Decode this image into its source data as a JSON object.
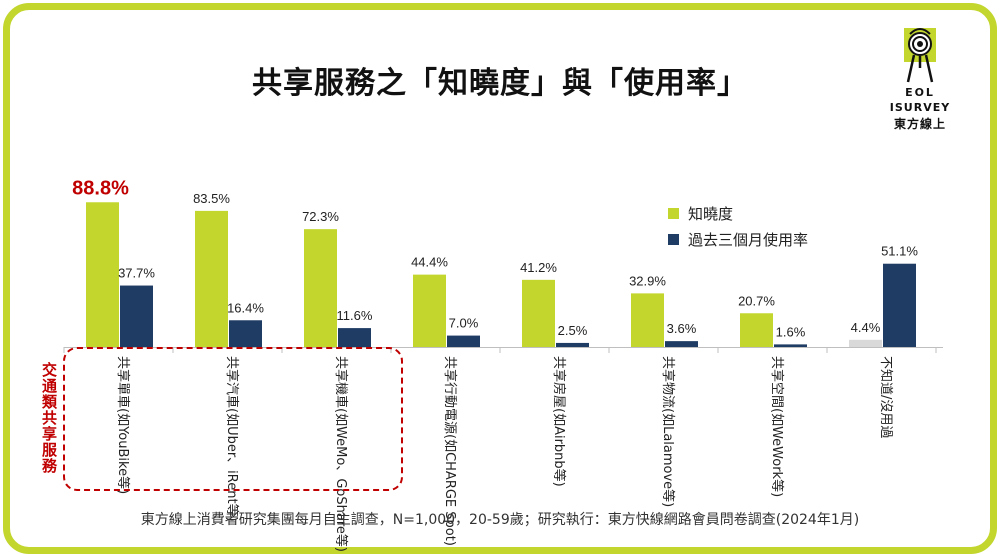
{
  "title": "共享服務之「知曉度」與「使用率」",
  "logo": {
    "line1": "EOL",
    "line2": "ISURVEY",
    "line3": "東方線上"
  },
  "side_label": "交通類共享服務",
  "footnote": "東方線上消費者研究集團每月自主調查，N=1,000，20-59歲；研究執行：東方快線網路會員問卷調查(2024年1月)",
  "colors": {
    "awareness": "#c2d62e",
    "usage": "#1f3c64",
    "unknown": "#d9d9d9",
    "highlight": "#c00000",
    "frame": "#c2d62e"
  },
  "chart_data": {
    "type": "bar",
    "title": "共享服務之「知曉度」與「使用率」",
    "categories": [
      "共享單車(如YouBike等)",
      "共享汽車(如Uber、iRent等)",
      "共享機車(如WeMo、GoShare等)",
      "共享行動電源(如CHARGE Spot)",
      "共享房屋(如Airbnb等)",
      "共享物流(如Lalamove等)",
      "共享空間(如WeWork等)",
      "不知道/沒用過"
    ],
    "series": [
      {
        "name": "知曉度",
        "values": [
          88.8,
          83.5,
          72.3,
          44.4,
          41.2,
          32.9,
          20.7,
          4.4
        ]
      },
      {
        "name": "過去三個月使用率",
        "values": [
          37.7,
          16.4,
          11.6,
          7.0,
          2.5,
          3.6,
          1.6,
          51.1
        ]
      }
    ],
    "labels": {
      "awareness": [
        "88.8%",
        "83.5%",
        "72.3%",
        "44.4%",
        "41.2%",
        "32.9%",
        "20.7%",
        "4.4%"
      ],
      "usage": [
        "37.7%",
        "16.4%",
        "11.6%",
        "7.0%",
        "2.5%",
        "3.6%",
        "1.6%",
        "51.1%"
      ]
    },
    "ylim": [
      0,
      100
    ],
    "legend_position": "right",
    "grid": false
  }
}
